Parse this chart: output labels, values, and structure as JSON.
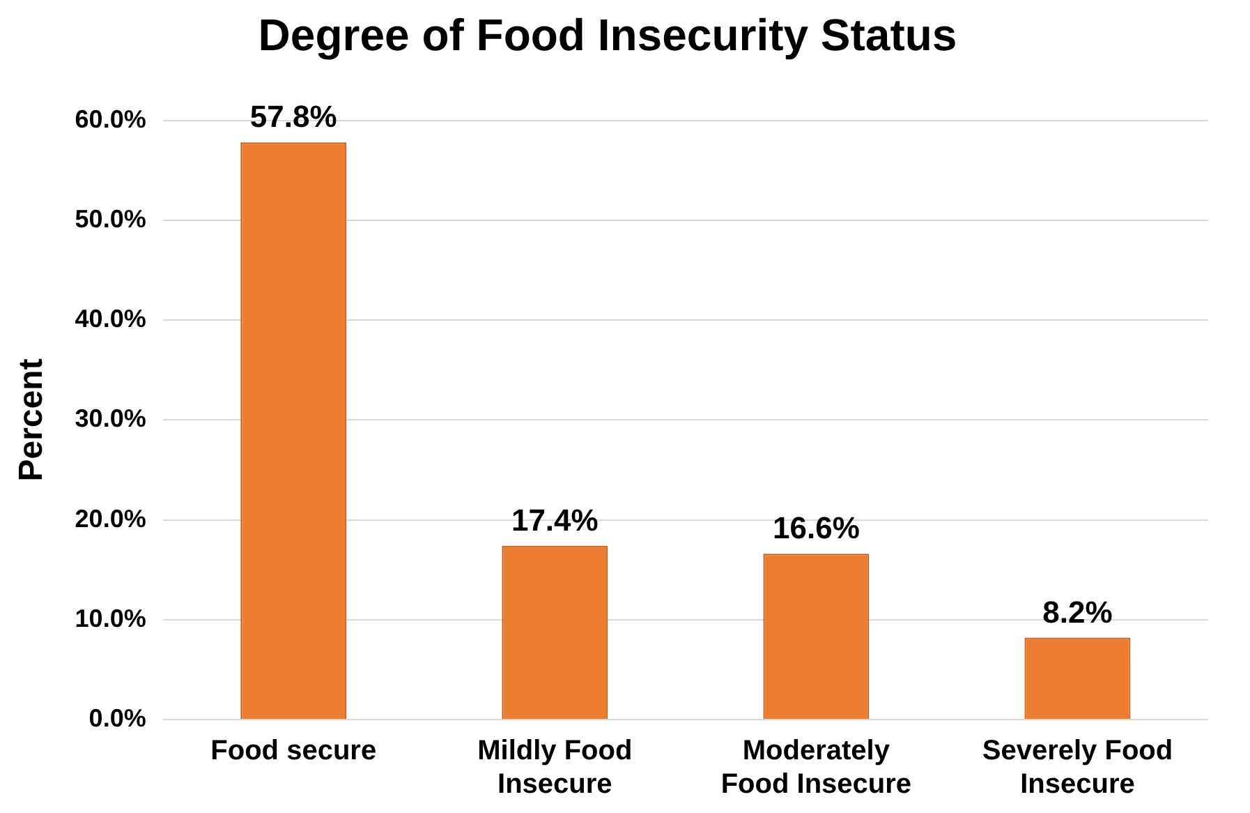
{
  "chart_data": {
    "type": "bar",
    "title": "Degree of Food Insecurity Status",
    "ylabel": "Percent",
    "categories": [
      "Food secure",
      "Mildly Food Insecure",
      "Moderately Food Insecure",
      "Severely Food Insecure"
    ],
    "values": [
      57.8,
      17.4,
      16.6,
      8.2
    ],
    "color": "#ed7d31",
    "value_labels": [
      "57.8%",
      "17.4%",
      "16.6%",
      "8.2%"
    ],
    "ylim": [
      0,
      60
    ],
    "yticks": [
      {
        "value": 0,
        "label": "0.0%"
      },
      {
        "value": 10,
        "label": "10.0%"
      },
      {
        "value": 20,
        "label": "20.0%"
      },
      {
        "value": 30,
        "label": "30.0%"
      },
      {
        "value": 40,
        "label": "40.0%"
      },
      {
        "value": 50,
        "label": "50.0%"
      },
      {
        "value": 60,
        "label": "60.0%"
      }
    ],
    "grid": "y",
    "legend": false
  }
}
